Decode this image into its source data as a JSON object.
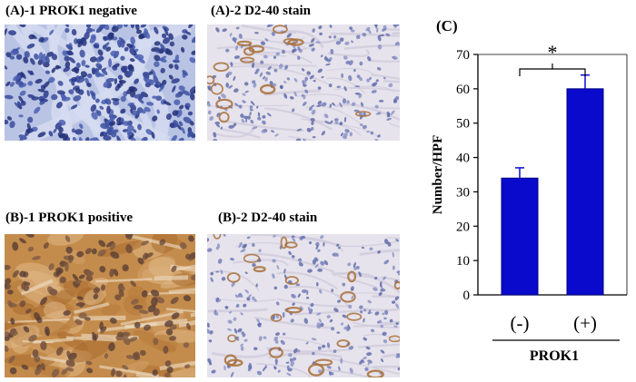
{
  "panels": {
    "a1": {
      "label": "(A)-1 PROK1 negative",
      "stain": "hematoxylin-nuclei"
    },
    "a2": {
      "label": "(A)-2 D2-40 stain",
      "stain": "light-tissue-with-brown-vessels"
    },
    "b1": {
      "label": "(B)-1 PROK1 positive",
      "stain": "brown-cytoplasm"
    },
    "b2": {
      "label": "(B)-2 D2-40 stain",
      "stain": "light-tissue-with-brown-vessels"
    }
  },
  "colors": {
    "bar": "#0a0acd",
    "bar_edge": "#000080",
    "nuclei": "#3b4f9e",
    "brown": "#b87a3a",
    "tissue_light": "#e8e6ee"
  },
  "chart_data": {
    "type": "bar",
    "panel_label": "(C)",
    "categories": [
      "(-)",
      "(+)"
    ],
    "values": [
      34,
      60
    ],
    "errors": [
      3,
      4
    ],
    "ylabel": "Number/HPF",
    "xlabel": "PROK1",
    "ylim": [
      0,
      70
    ],
    "yticks": [
      0,
      10,
      20,
      30,
      40,
      50,
      60,
      70
    ],
    "significance": "*",
    "grid": false
  }
}
